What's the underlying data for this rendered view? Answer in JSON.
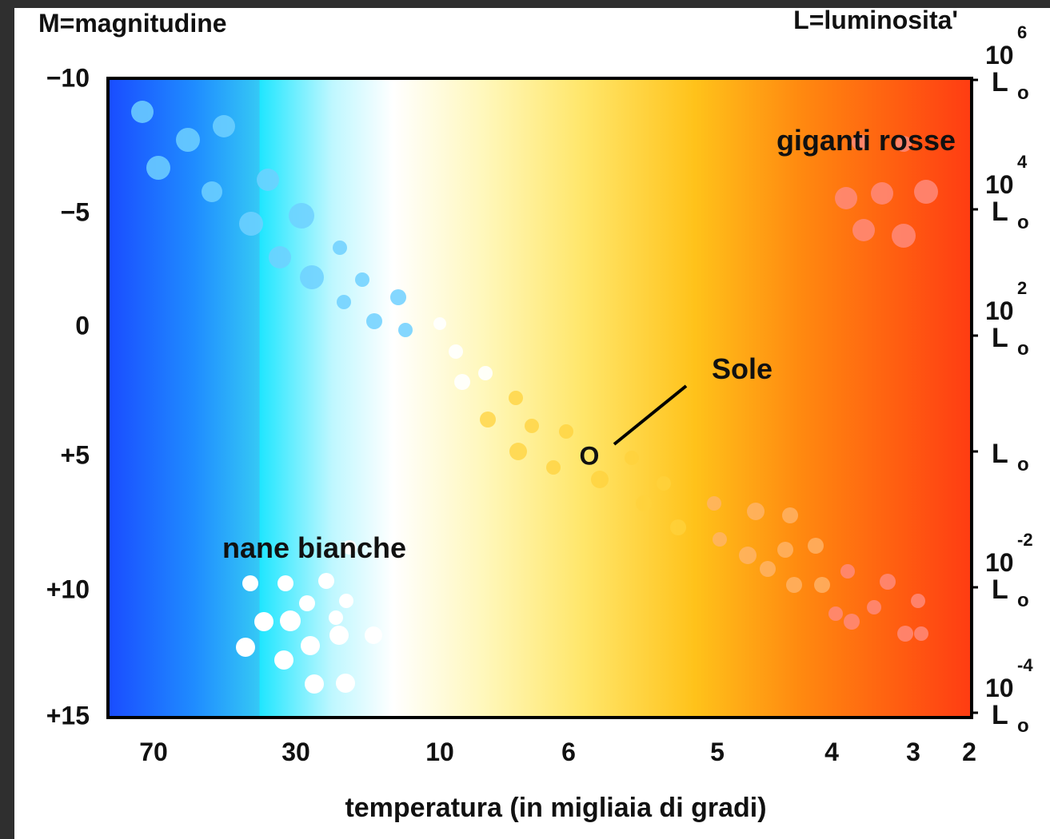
{
  "header": {
    "left": "M=magnitudine",
    "right": "L=luminosita'"
  },
  "y_axis": {
    "labels": [
      "−10",
      "−5",
      "0",
      "+5",
      "+10",
      "+15"
    ]
  },
  "x_axis": {
    "labels": [
      "70",
      "30",
      "10",
      "6",
      "5",
      "4",
      "3",
      "2"
    ],
    "title": "temperatura (in migliaia di gradi)"
  },
  "luminosity_axis": [
    {
      "base": "10",
      "exp": "6",
      "unit": "L",
      "sub": "o"
    },
    {
      "base": "10",
      "exp": "4",
      "unit": "L",
      "sub": "o"
    },
    {
      "base": "10",
      "exp": "2",
      "unit": "L",
      "sub": "o"
    },
    {
      "unit": "L",
      "sub": "o"
    },
    {
      "base": "10",
      "exp": "-2",
      "unit": "L",
      "sub": "o"
    },
    {
      "base": "10",
      "exp": "-4",
      "unit": "L",
      "sub": "o"
    }
  ],
  "annotations": {
    "red_giants": "giganti rosse",
    "white_dwarfs": "nane bianche",
    "sun": "Sole",
    "sun_marker": "O"
  }
}
